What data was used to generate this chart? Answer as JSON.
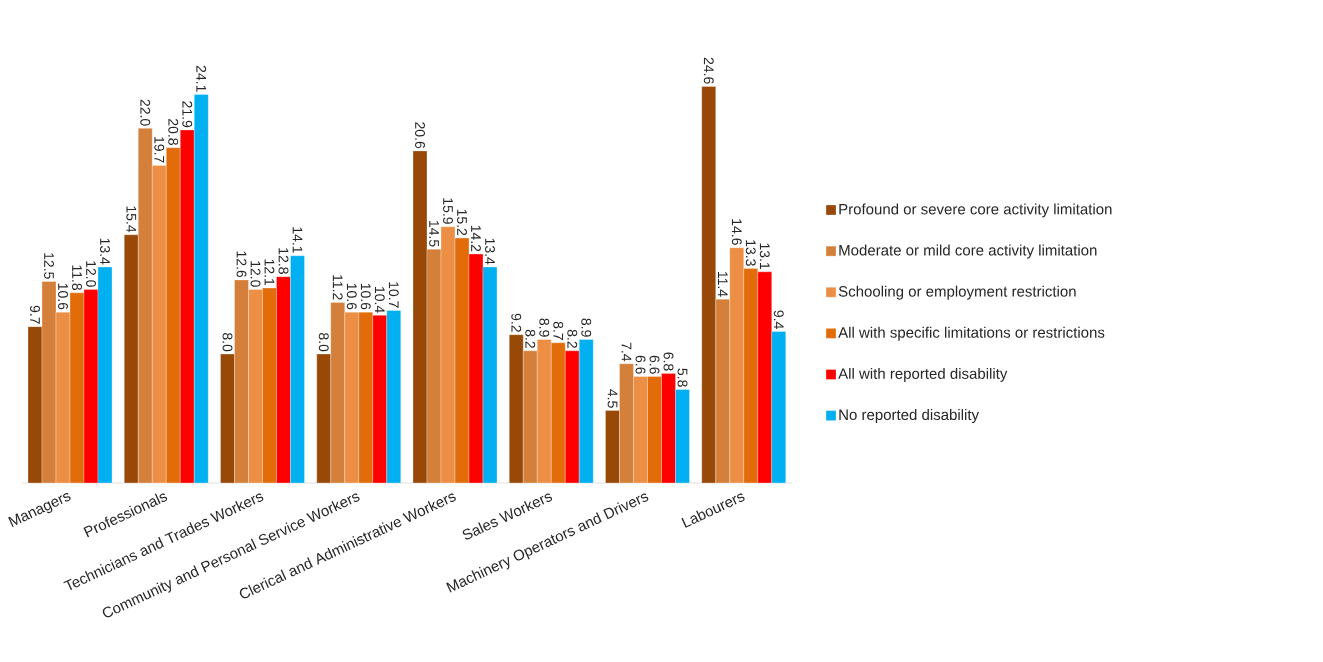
{
  "chart_data": {
    "type": "bar",
    "categories": [
      "Managers",
      "Professionals",
      "Technicians and Trades Workers",
      "Community and Personal Service Workers",
      "Clerical and Administrative Workers",
      "Sales Workers",
      "Machinery Operators and Drivers",
      "Labourers"
    ],
    "series": [
      {
        "name": "Profound or severe core activity limitation",
        "color": "#984807",
        "values": [
          9.7,
          15.4,
          8.0,
          8.0,
          20.6,
          9.2,
          4.5,
          24.6
        ],
        "value_labels": [
          "9.7",
          "15.4",
          "8.0",
          "8.0",
          "20.6",
          "9.2",
          "4.5",
          "24.6"
        ]
      },
      {
        "name": "Moderate or mild core activity limitation",
        "color": "#d47f3a",
        "values": [
          12.5,
          22.0,
          12.6,
          11.2,
          14.5,
          8.2,
          7.4,
          11.4
        ],
        "value_labels": [
          "12.5",
          "22.0",
          "12.6",
          "11.2",
          "14.5",
          "8.2",
          "7.4",
          "11.4"
        ]
      },
      {
        "name": "Schooling or employment restriction",
        "color": "#ec8f45",
        "values": [
          10.6,
          19.7,
          12.0,
          10.6,
          15.9,
          8.9,
          6.6,
          14.6
        ],
        "value_labels": [
          "10.6",
          "19.7",
          "12.0",
          "10.6",
          "15.9",
          "8.9",
          "6.6",
          "14.6"
        ]
      },
      {
        "name": "All with specific limitations or restrictions",
        "color": "#e36c0a",
        "values": [
          11.8,
          20.8,
          12.1,
          10.6,
          15.2,
          8.7,
          6.6,
          13.3
        ],
        "value_labels": [
          "11.8",
          "20.8",
          "12.1",
          "10.6",
          "15.2",
          "8.7",
          "6.6",
          "13.3"
        ]
      },
      {
        "name": "All with reported disability",
        "color": "#ff0000",
        "values": [
          12.0,
          21.9,
          12.8,
          10.4,
          14.2,
          8.2,
          6.8,
          13.1
        ],
        "value_labels": [
          "12.0",
          "21.9",
          "12.8",
          "10.4",
          "14.2",
          "8.2",
          "6.8",
          "13.1"
        ]
      },
      {
        "name": "No reported disability",
        "color": "#00b0f0",
        "values": [
          13.4,
          24.1,
          14.1,
          10.7,
          13.4,
          8.9,
          5.8,
          9.4
        ],
        "value_labels": [
          "13.4",
          "24.1",
          "14.1",
          "10.7",
          "13.4",
          "8.9",
          "5.8",
          "9.4"
        ]
      }
    ],
    "legend": "right",
    "tick_labels": "x",
    "grid": false
  }
}
